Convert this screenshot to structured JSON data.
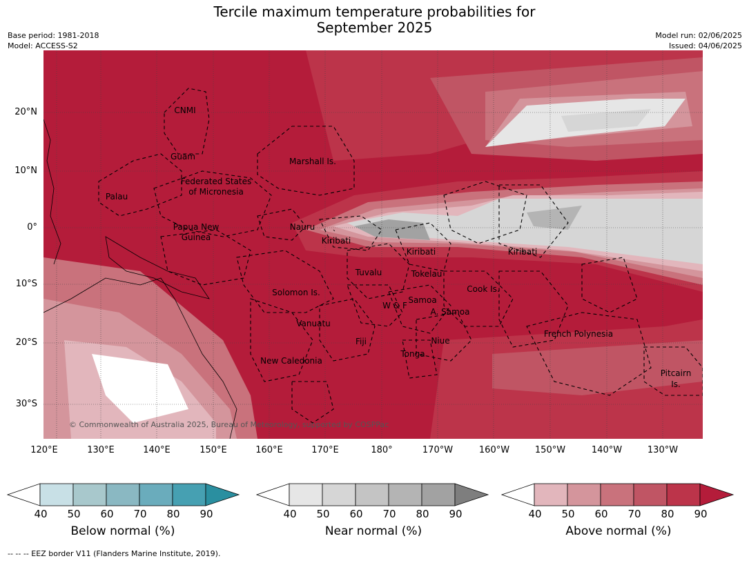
{
  "header": {
    "title_line1": "Tercile maximum temperature probabilities for",
    "title_line2": "September 2025",
    "base_period": "Base period: 1981-2018",
    "model": "Model: ACCESS-S2",
    "model_run": "Model run: 02/06/2025",
    "issued": "Issued: 04/06/2025"
  },
  "axes": {
    "lat_labels": [
      "20°N",
      "10°N",
      "0°",
      "10°S",
      "20°S",
      "30°S"
    ],
    "lon_labels": [
      "120°E",
      "130°E",
      "140°E",
      "150°E",
      "160°E",
      "170°E",
      "180°",
      "170°W",
      "160°W",
      "150°W",
      "140°W",
      "130°W"
    ]
  },
  "map_labels": [
    {
      "name": "label-cnmi",
      "text": "CNMI"
    },
    {
      "name": "label-guam",
      "text": "Guam"
    },
    {
      "name": "label-marshall",
      "text": "Marshall Is."
    },
    {
      "name": "label-fsm-1",
      "text": "Federated States"
    },
    {
      "name": "label-fsm-2",
      "text": "of Micronesia"
    },
    {
      "name": "label-palau",
      "text": "Palau"
    },
    {
      "name": "label-png-1",
      "text": "Papua New"
    },
    {
      "name": "label-png-2",
      "text": "Guinea"
    },
    {
      "name": "label-nauru",
      "text": "Nauru"
    },
    {
      "name": "label-kiribati-w",
      "text": "Kiribati"
    },
    {
      "name": "label-kiribati-c",
      "text": "Kiribati"
    },
    {
      "name": "label-kiribati-e",
      "text": "Kiribati"
    },
    {
      "name": "label-tuvalu",
      "text": "Tuvalu"
    },
    {
      "name": "label-tokelau",
      "text": "Tokelau"
    },
    {
      "name": "label-cook",
      "text": "Cook Is."
    },
    {
      "name": "label-solomon",
      "text": "Solomon Is."
    },
    {
      "name": "label-wf",
      "text": "W & F"
    },
    {
      "name": "label-samoa",
      "text": "Samoa"
    },
    {
      "name": "label-asamoa",
      "text": "A. Samoa"
    },
    {
      "name": "label-vanuatu",
      "text": "Vanuatu"
    },
    {
      "name": "label-fiji",
      "text": "Fiji"
    },
    {
      "name": "label-niue",
      "text": "Niue"
    },
    {
      "name": "label-tonga",
      "text": "Tonga"
    },
    {
      "name": "label-french-polynesia",
      "text": "French Polynesia"
    },
    {
      "name": "label-new-caledonia",
      "text": "New Caledonia"
    },
    {
      "name": "label-pitcairn-1",
      "text": "Pitcairn"
    },
    {
      "name": "label-pitcairn-2",
      "text": "Is."
    }
  ],
  "copyright": "© Commonwealth of Australia 2025, Bureau of Meteorology, supported by COSPPac",
  "colorbars": [
    {
      "title": "Below normal (%)",
      "ticks": [
        "40",
        "50",
        "60",
        "70",
        "80",
        "90"
      ],
      "colors": [
        "#ffffff",
        "#c8e0e6",
        "#a8c8cc",
        "#8ab8c2",
        "#6aacbc",
        "#46a0b2",
        "#2a8fa0"
      ]
    },
    {
      "title": "Near normal (%)",
      "ticks": [
        "40",
        "50",
        "60",
        "70",
        "80",
        "90"
      ],
      "colors": [
        "#ffffff",
        "#e6e6e6",
        "#d6d6d6",
        "#c4c4c4",
        "#b4b4b4",
        "#a2a2a2",
        "#7e7e7e"
      ]
    },
    {
      "title": "Above normal (%)",
      "ticks": [
        "40",
        "50",
        "60",
        "70",
        "80",
        "90"
      ],
      "colors": [
        "#ffffff",
        "#e2b6bc",
        "#d4959c",
        "#c9727c",
        "#c05564",
        "#bc344a",
        "#b41c3a"
      ]
    }
  ],
  "footer": "--  --  -- EEZ border V11 (Flanders Marine Institute, 2019)."
}
